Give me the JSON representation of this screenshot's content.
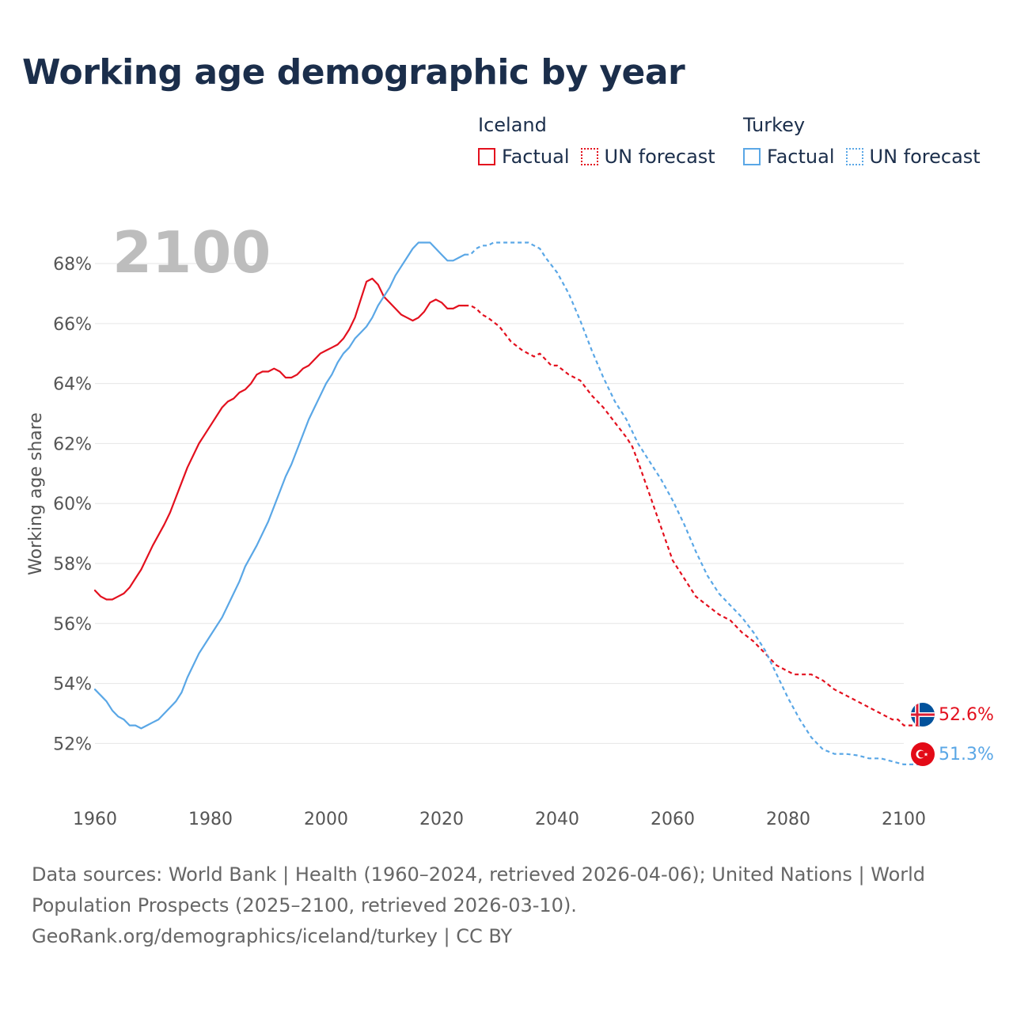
{
  "page": {
    "title": "Working age demographic by year",
    "footer": {
      "line1": "Data sources: World Bank | Health (1960–2024, retrieved 2026-04-06); United Nations | World",
      "line2": "Population Prospects (2025–2100, retrieved 2026-03-10).",
      "line3": "GeoRank.org/demographics/iceland/turkey | CC BY"
    }
  },
  "legend": {
    "groups": [
      {
        "name": "Iceland",
        "items": [
          {
            "label": "Factual",
            "style": "solid"
          },
          {
            "label": "UN forecast",
            "style": "dotted"
          }
        ],
        "color": "#e3101e"
      },
      {
        "name": "Turkey",
        "items": [
          {
            "label": "Factual",
            "style": "solid"
          },
          {
            "label": "UN forecast",
            "style": "dotted"
          }
        ],
        "color": "#5aa7e6"
      }
    ]
  },
  "chart_data": {
    "type": "line",
    "title": "Working age demographic by year",
    "ylabel": "Working age share",
    "xlabel": "",
    "year_watermark": "2100",
    "xlim": [
      1960,
      2100
    ],
    "ylim": [
      50.4,
      69.4
    ],
    "xticks": [
      "1960",
      "1980",
      "2000",
      "2020",
      "2040",
      "2060",
      "2080",
      "2100"
    ],
    "yticks": [
      {
        "value": 52,
        "label": "52%"
      },
      {
        "value": 54,
        "label": "54%"
      },
      {
        "value": 56,
        "label": "56%"
      },
      {
        "value": 58,
        "label": "58%"
      },
      {
        "value": 60,
        "label": "60%"
      },
      {
        "value": 62,
        "label": "62%"
      },
      {
        "value": 64,
        "label": "64%"
      },
      {
        "value": 66,
        "label": "66%"
      },
      {
        "value": 68,
        "label": "68%"
      }
    ],
    "grid": true,
    "forecast_start": 2024,
    "series": [
      {
        "name": "Iceland",
        "color": "#e3101e",
        "end_label": "52.6%",
        "points": [
          [
            1960,
            57.1
          ],
          [
            1961,
            56.9
          ],
          [
            1962,
            56.8
          ],
          [
            1963,
            56.8
          ],
          [
            1964,
            56.9
          ],
          [
            1965,
            57.0
          ],
          [
            1966,
            57.2
          ],
          [
            1967,
            57.5
          ],
          [
            1968,
            57.8
          ],
          [
            1970,
            58.6
          ],
          [
            1972,
            59.3
          ],
          [
            1973,
            59.7
          ],
          [
            1974,
            60.2
          ],
          [
            1975,
            60.7
          ],
          [
            1976,
            61.2
          ],
          [
            1978,
            62.0
          ],
          [
            1980,
            62.6
          ],
          [
            1982,
            63.2
          ],
          [
            1983,
            63.4
          ],
          [
            1984,
            63.5
          ],
          [
            1985,
            63.7
          ],
          [
            1986,
            63.8
          ],
          [
            1987,
            64.0
          ],
          [
            1988,
            64.3
          ],
          [
            1989,
            64.4
          ],
          [
            1990,
            64.4
          ],
          [
            1991,
            64.5
          ],
          [
            1992,
            64.4
          ],
          [
            1993,
            64.2
          ],
          [
            1994,
            64.2
          ],
          [
            1995,
            64.3
          ],
          [
            1996,
            64.5
          ],
          [
            1997,
            64.6
          ],
          [
            1998,
            64.8
          ],
          [
            1999,
            65.0
          ],
          [
            2000,
            65.1
          ],
          [
            2001,
            65.2
          ],
          [
            2002,
            65.3
          ],
          [
            2003,
            65.5
          ],
          [
            2004,
            65.8
          ],
          [
            2005,
            66.2
          ],
          [
            2006,
            66.8
          ],
          [
            2007,
            67.4
          ],
          [
            2008,
            67.5
          ],
          [
            2009,
            67.3
          ],
          [
            2010,
            66.9
          ],
          [
            2011,
            66.7
          ],
          [
            2012,
            66.5
          ],
          [
            2013,
            66.3
          ],
          [
            2014,
            66.2
          ],
          [
            2015,
            66.1
          ],
          [
            2016,
            66.2
          ],
          [
            2017,
            66.4
          ],
          [
            2018,
            66.7
          ],
          [
            2019,
            66.8
          ],
          [
            2020,
            66.7
          ],
          [
            2021,
            66.5
          ],
          [
            2022,
            66.5
          ],
          [
            2023,
            66.6
          ],
          [
            2024,
            66.6
          ],
          [
            2025,
            66.6
          ],
          [
            2026,
            66.5
          ],
          [
            2027,
            66.3
          ],
          [
            2028,
            66.2
          ],
          [
            2030,
            65.9
          ],
          [
            2032,
            65.4
          ],
          [
            2034,
            65.1
          ],
          [
            2036,
            64.9
          ],
          [
            2037,
            65.0
          ],
          [
            2038,
            64.8
          ],
          [
            2039,
            64.6
          ],
          [
            2040,
            64.6
          ],
          [
            2042,
            64.3
          ],
          [
            2044,
            64.1
          ],
          [
            2046,
            63.6
          ],
          [
            2048,
            63.2
          ],
          [
            2050,
            62.7
          ],
          [
            2052,
            62.2
          ],
          [
            2053,
            61.9
          ],
          [
            2054,
            61.4
          ],
          [
            2056,
            60.3
          ],
          [
            2058,
            59.2
          ],
          [
            2060,
            58.1
          ],
          [
            2062,
            57.5
          ],
          [
            2064,
            56.9
          ],
          [
            2066,
            56.6
          ],
          [
            2068,
            56.3
          ],
          [
            2070,
            56.1
          ],
          [
            2072,
            55.7
          ],
          [
            2074,
            55.4
          ],
          [
            2076,
            55.0
          ],
          [
            2078,
            54.6
          ],
          [
            2080,
            54.4
          ],
          [
            2081,
            54.3
          ],
          [
            2084,
            54.3
          ],
          [
            2086,
            54.1
          ],
          [
            2088,
            53.8
          ],
          [
            2090,
            53.6
          ],
          [
            2092,
            53.4
          ],
          [
            2094,
            53.2
          ],
          [
            2096,
            53.0
          ],
          [
            2098,
            52.8
          ],
          [
            2099,
            52.8
          ],
          [
            2100,
            52.6
          ],
          [
            2103,
            52.6
          ]
        ]
      },
      {
        "name": "Turkey",
        "color": "#5aa7e6",
        "end_label": "51.3%",
        "points": [
          [
            1960,
            53.8
          ],
          [
            1961,
            53.6
          ],
          [
            1962,
            53.4
          ],
          [
            1963,
            53.1
          ],
          [
            1964,
            52.9
          ],
          [
            1965,
            52.8
          ],
          [
            1966,
            52.6
          ],
          [
            1967,
            52.6
          ],
          [
            1968,
            52.5
          ],
          [
            1969,
            52.6
          ],
          [
            1970,
            52.7
          ],
          [
            1971,
            52.8
          ],
          [
            1972,
            53.0
          ],
          [
            1974,
            53.4
          ],
          [
            1975,
            53.7
          ],
          [
            1976,
            54.2
          ],
          [
            1978,
            55.0
          ],
          [
            1980,
            55.6
          ],
          [
            1982,
            56.2
          ],
          [
            1984,
            57.0
          ],
          [
            1985,
            57.4
          ],
          [
            1986,
            57.9
          ],
          [
            1988,
            58.6
          ],
          [
            1990,
            59.4
          ],
          [
            1991,
            59.9
          ],
          [
            1992,
            60.4
          ],
          [
            1993,
            60.9
          ],
          [
            1994,
            61.3
          ],
          [
            1995,
            61.8
          ],
          [
            1996,
            62.3
          ],
          [
            1997,
            62.8
          ],
          [
            1998,
            63.2
          ],
          [
            1999,
            63.6
          ],
          [
            2000,
            64.0
          ],
          [
            2001,
            64.3
          ],
          [
            2002,
            64.7
          ],
          [
            2003,
            65.0
          ],
          [
            2004,
            65.2
          ],
          [
            2005,
            65.5
          ],
          [
            2006,
            65.7
          ],
          [
            2007,
            65.9
          ],
          [
            2008,
            66.2
          ],
          [
            2009,
            66.6
          ],
          [
            2010,
            66.9
          ],
          [
            2011,
            67.2
          ],
          [
            2012,
            67.6
          ],
          [
            2013,
            67.9
          ],
          [
            2014,
            68.2
          ],
          [
            2015,
            68.5
          ],
          [
            2016,
            68.7
          ],
          [
            2017,
            68.7
          ],
          [
            2018,
            68.7
          ],
          [
            2019,
            68.5
          ],
          [
            2020,
            68.3
          ],
          [
            2021,
            68.1
          ],
          [
            2022,
            68.1
          ],
          [
            2023,
            68.2
          ],
          [
            2024,
            68.3
          ],
          [
            2025,
            68.3
          ],
          [
            2026,
            68.5
          ],
          [
            2027,
            68.6
          ],
          [
            2028,
            68.6
          ],
          [
            2029,
            68.7
          ],
          [
            2030,
            68.7
          ],
          [
            2034,
            68.7
          ],
          [
            2035,
            68.7
          ],
          [
            2036,
            68.6
          ],
          [
            2037,
            68.5
          ],
          [
            2038,
            68.2
          ],
          [
            2040,
            67.7
          ],
          [
            2042,
            67.0
          ],
          [
            2044,
            66.1
          ],
          [
            2046,
            65.1
          ],
          [
            2048,
            64.2
          ],
          [
            2050,
            63.4
          ],
          [
            2052,
            62.8
          ],
          [
            2054,
            62.0
          ],
          [
            2056,
            61.4
          ],
          [
            2058,
            60.8
          ],
          [
            2060,
            60.1
          ],
          [
            2062,
            59.3
          ],
          [
            2064,
            58.4
          ],
          [
            2066,
            57.6
          ],
          [
            2068,
            57.0
          ],
          [
            2070,
            56.6
          ],
          [
            2072,
            56.2
          ],
          [
            2074,
            55.7
          ],
          [
            2076,
            55.1
          ],
          [
            2078,
            54.3
          ],
          [
            2080,
            53.5
          ],
          [
            2082,
            52.8
          ],
          [
            2084,
            52.2
          ],
          [
            2086,
            51.8
          ],
          [
            2088,
            51.65
          ],
          [
            2090,
            51.65
          ],
          [
            2092,
            51.6
          ],
          [
            2094,
            51.5
          ],
          [
            2096,
            51.5
          ],
          [
            2098,
            51.4
          ],
          [
            2100,
            51.3
          ],
          [
            2103,
            51.3
          ]
        ]
      }
    ]
  }
}
